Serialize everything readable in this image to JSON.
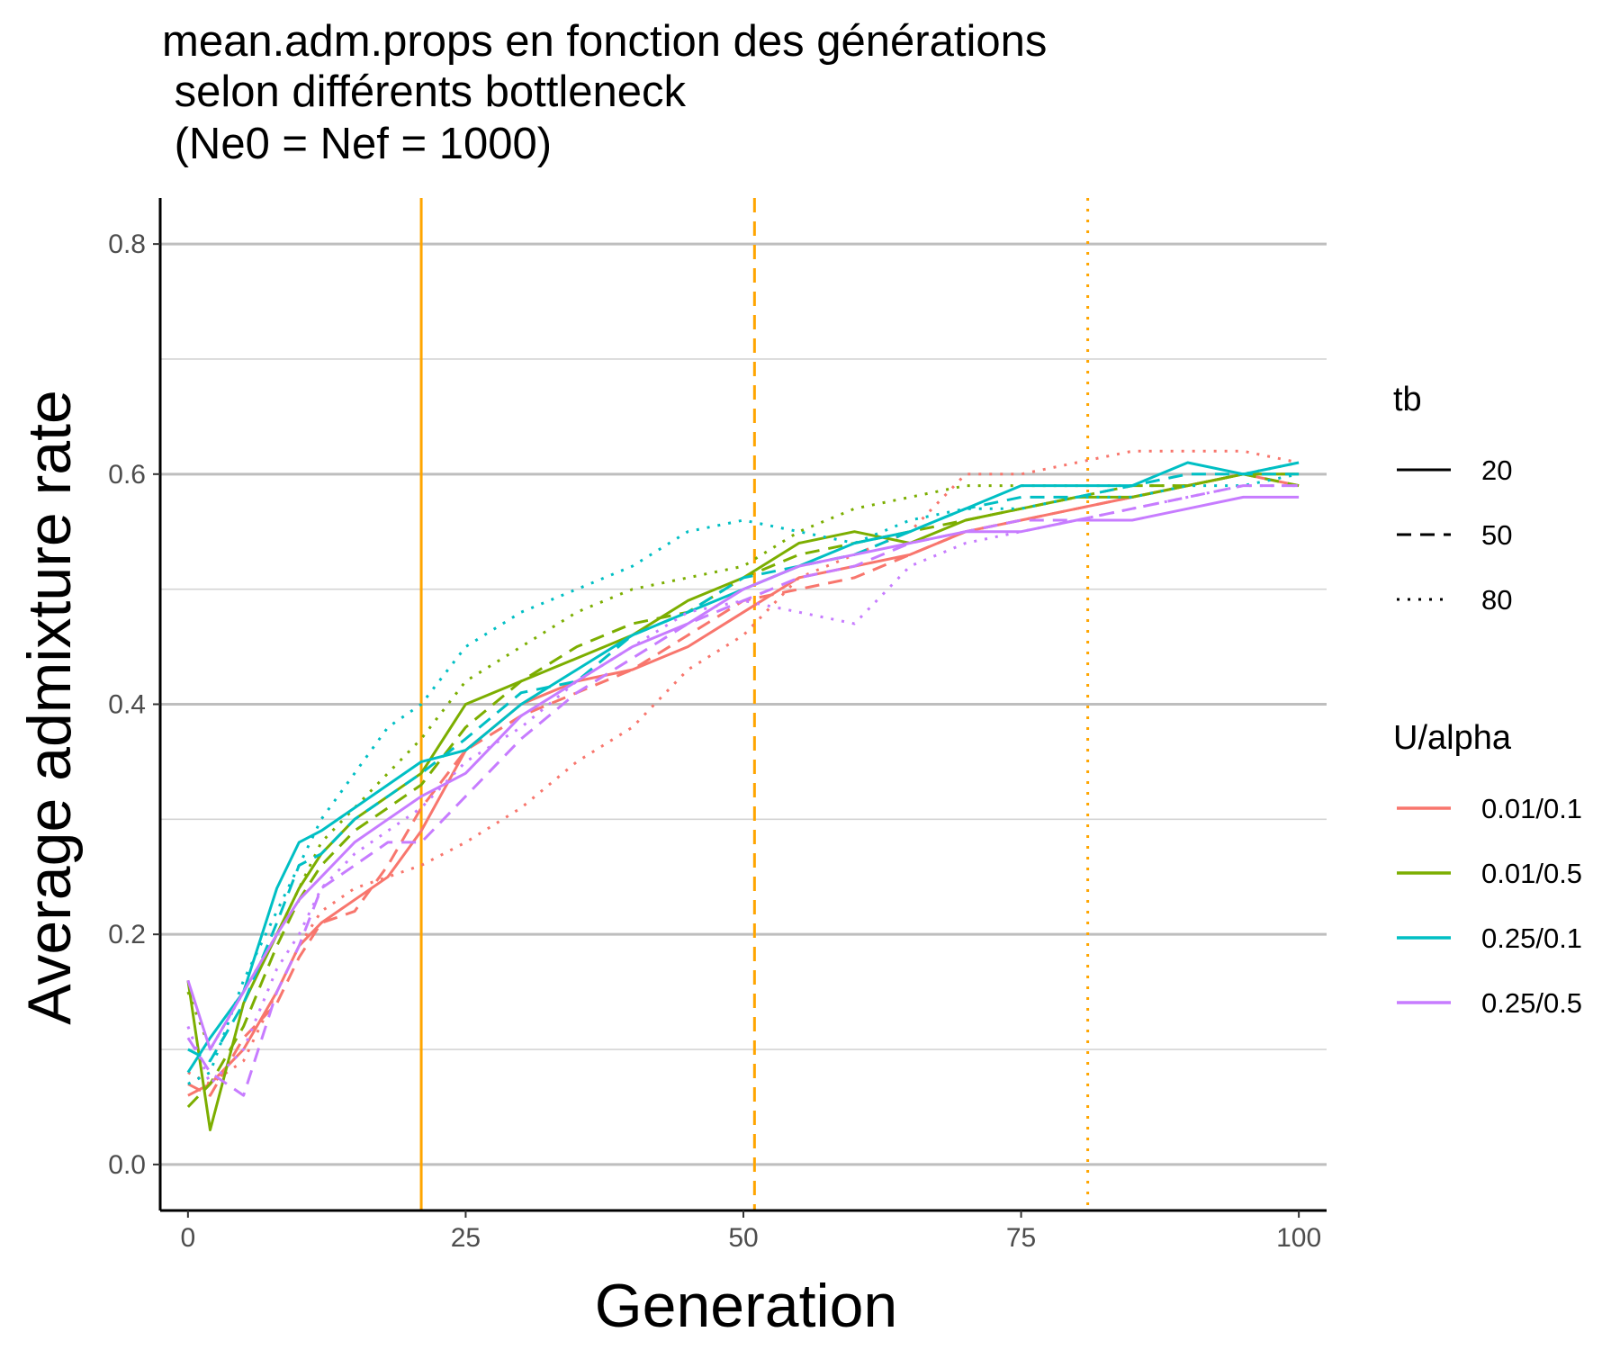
{
  "chart_data": {
    "type": "line",
    "title": [
      "mean.adm.props en fonction des générations",
      " selon différents bottleneck",
      " (Ne0 = Nef = 1000)"
    ],
    "xlabel": "Generation",
    "ylabel": "Average admixture rate",
    "xlim": [
      -2.5,
      102.5
    ],
    "ylim": [
      -0.04,
      0.84
    ],
    "x_ticks": [
      0,
      25,
      50,
      75,
      100
    ],
    "y_ticks": [
      0.0,
      0.2,
      0.4,
      0.6,
      0.8
    ],
    "x_tick_labels": [
      "0",
      "25",
      "50",
      "75",
      "100"
    ],
    "y_tick_labels": [
      "0.0",
      "0.2",
      "0.4",
      "0.6",
      "0.8"
    ],
    "grid": "horizontal",
    "legend_position": "right",
    "legends": {
      "linetype": {
        "title": "tb",
        "entries": [
          {
            "label": "20",
            "dash": "solid"
          },
          {
            "label": "50",
            "dash": "dashed"
          },
          {
            "label": "80",
            "dash": "dotted"
          }
        ]
      },
      "color": {
        "title": "U/alpha",
        "entries": [
          {
            "label": "0.01/0.1",
            "color": "#F8766D"
          },
          {
            "label": "0.01/0.5",
            "color": "#7CAE00"
          },
          {
            "label": "0.25/0.1",
            "color": "#00BFC4"
          },
          {
            "label": "0.25/0.5",
            "color": "#C77CFF"
          }
        ]
      }
    },
    "vlines": [
      {
        "x": 21,
        "dash": "solid",
        "color": "#FFA500"
      },
      {
        "x": 51,
        "dash": "dashed",
        "color": "#FFA500"
      },
      {
        "x": 81,
        "dash": "dotted",
        "color": "#FFA500"
      }
    ],
    "series": [
      {
        "color_group": "0.01/0.1",
        "tb": "20",
        "color": "#F8766D",
        "dash": "solid",
        "x": [
          0,
          2,
          5,
          8,
          10,
          12,
          15,
          18,
          21,
          25,
          30,
          35,
          40,
          45,
          50,
          55,
          60,
          65,
          70,
          75,
          80,
          85,
          90,
          95,
          100
        ],
        "y": [
          0.06,
          0.07,
          0.1,
          0.15,
          0.19,
          0.21,
          0.23,
          0.25,
          0.29,
          0.36,
          0.4,
          0.42,
          0.43,
          0.45,
          0.48,
          0.51,
          0.52,
          0.53,
          0.55,
          0.56,
          0.57,
          0.58,
          0.59,
          0.6,
          0.59
        ]
      },
      {
        "color_group": "0.01/0.1",
        "tb": "50",
        "color": "#F8766D",
        "dash": "dashed",
        "x": [
          0,
          2,
          5,
          8,
          10,
          12,
          15,
          18,
          21,
          25,
          30,
          35,
          40,
          45,
          50,
          55,
          60,
          65,
          70,
          75,
          80,
          85,
          90,
          95,
          100
        ],
        "y": [
          0.07,
          0.06,
          0.11,
          0.14,
          0.18,
          0.21,
          0.22,
          0.26,
          0.31,
          0.36,
          0.39,
          0.41,
          0.43,
          0.46,
          0.49,
          0.5,
          0.51,
          0.53,
          0.55,
          0.56,
          0.57,
          0.58,
          0.59,
          0.6,
          0.6
        ]
      },
      {
        "color_group": "0.01/0.1",
        "tb": "80",
        "color": "#F8766D",
        "dash": "dotted",
        "x": [
          0,
          2,
          5,
          8,
          10,
          12,
          15,
          18,
          21,
          25,
          30,
          35,
          40,
          45,
          50,
          55,
          60,
          65,
          70,
          75,
          80,
          85,
          90,
          95,
          100
        ],
        "y": [
          0.08,
          0.07,
          0.09,
          0.15,
          0.19,
          0.22,
          0.24,
          0.25,
          0.26,
          0.28,
          0.31,
          0.35,
          0.38,
          0.43,
          0.46,
          0.51,
          0.53,
          0.55,
          0.6,
          0.6,
          0.61,
          0.62,
          0.62,
          0.62,
          0.61
        ]
      },
      {
        "color_group": "0.01/0.5",
        "tb": "20",
        "color": "#7CAE00",
        "dash": "solid",
        "x": [
          0,
          2,
          5,
          8,
          10,
          12,
          15,
          18,
          21,
          25,
          30,
          35,
          40,
          45,
          50,
          55,
          60,
          65,
          70,
          75,
          80,
          85,
          90,
          95,
          100
        ],
        "y": [
          0.16,
          0.03,
          0.14,
          0.2,
          0.24,
          0.27,
          0.3,
          0.32,
          0.34,
          0.4,
          0.42,
          0.44,
          0.46,
          0.49,
          0.51,
          0.54,
          0.55,
          0.54,
          0.56,
          0.57,
          0.58,
          0.58,
          0.59,
          0.6,
          0.6
        ]
      },
      {
        "color_group": "0.01/0.5",
        "tb": "50",
        "color": "#7CAE00",
        "dash": "dashed",
        "x": [
          0,
          2,
          5,
          8,
          10,
          12,
          15,
          18,
          21,
          25,
          30,
          35,
          40,
          45,
          50,
          55,
          60,
          65,
          70,
          75,
          80,
          85,
          90,
          95,
          100
        ],
        "y": [
          0.05,
          0.07,
          0.12,
          0.19,
          0.23,
          0.26,
          0.29,
          0.31,
          0.33,
          0.38,
          0.42,
          0.45,
          0.47,
          0.48,
          0.51,
          0.53,
          0.54,
          0.55,
          0.56,
          0.57,
          0.58,
          0.59,
          0.59,
          0.6,
          0.59
        ]
      },
      {
        "color_group": "0.01/0.5",
        "tb": "80",
        "color": "#7CAE00",
        "dash": "dotted",
        "x": [
          0,
          2,
          5,
          8,
          10,
          12,
          15,
          18,
          21,
          25,
          30,
          35,
          40,
          45,
          50,
          55,
          60,
          65,
          70,
          75,
          80,
          85,
          90,
          95,
          100
        ],
        "y": [
          0.15,
          0.1,
          0.15,
          0.2,
          0.24,
          0.28,
          0.31,
          0.34,
          0.37,
          0.42,
          0.45,
          0.48,
          0.5,
          0.51,
          0.52,
          0.55,
          0.57,
          0.58,
          0.59,
          0.59,
          0.59,
          0.59,
          0.59,
          0.6,
          0.61
        ]
      },
      {
        "color_group": "0.25/0.1",
        "tb": "20",
        "color": "#00BFC4",
        "dash": "solid",
        "x": [
          0,
          2,
          5,
          8,
          10,
          12,
          15,
          18,
          21,
          25,
          30,
          35,
          40,
          45,
          50,
          55,
          60,
          65,
          70,
          75,
          80,
          85,
          90,
          95,
          100
        ],
        "y": [
          0.08,
          0.11,
          0.15,
          0.24,
          0.28,
          0.29,
          0.31,
          0.33,
          0.35,
          0.36,
          0.4,
          0.43,
          0.46,
          0.48,
          0.5,
          0.52,
          0.54,
          0.55,
          0.57,
          0.59,
          0.59,
          0.59,
          0.61,
          0.6,
          0.61
        ]
      },
      {
        "color_group": "0.25/0.1",
        "tb": "50",
        "color": "#00BFC4",
        "dash": "dashed",
        "x": [
          0,
          2,
          5,
          8,
          10,
          12,
          15,
          18,
          21,
          25,
          30,
          35,
          40,
          45,
          50,
          55,
          60,
          65,
          70,
          75,
          80,
          85,
          90,
          95,
          100
        ],
        "y": [
          0.1,
          0.09,
          0.14,
          0.21,
          0.26,
          0.27,
          0.3,
          0.32,
          0.34,
          0.37,
          0.41,
          0.42,
          0.46,
          0.48,
          0.51,
          0.52,
          0.53,
          0.55,
          0.57,
          0.58,
          0.58,
          0.59,
          0.6,
          0.6,
          0.6
        ]
      },
      {
        "color_group": "0.25/0.1",
        "tb": "80",
        "color": "#00BFC4",
        "dash": "dotted",
        "x": [
          0,
          2,
          5,
          8,
          10,
          12,
          15,
          18,
          21,
          25,
          30,
          35,
          40,
          45,
          50,
          55,
          60,
          65,
          70,
          75,
          80,
          85,
          90,
          95,
          100
        ],
        "y": [
          0.07,
          0.08,
          0.16,
          0.22,
          0.26,
          0.3,
          0.34,
          0.38,
          0.4,
          0.45,
          0.48,
          0.5,
          0.52,
          0.55,
          0.56,
          0.55,
          0.54,
          0.56,
          0.57,
          0.57,
          0.58,
          0.58,
          0.59,
          0.59,
          0.6
        ]
      },
      {
        "color_group": "0.25/0.5",
        "tb": "20",
        "color": "#C77CFF",
        "dash": "solid",
        "x": [
          0,
          2,
          5,
          8,
          10,
          12,
          15,
          18,
          21,
          25,
          30,
          35,
          40,
          45,
          50,
          55,
          60,
          65,
          70,
          75,
          80,
          85,
          90,
          95,
          100
        ],
        "y": [
          0.16,
          0.1,
          0.15,
          0.2,
          0.23,
          0.25,
          0.28,
          0.3,
          0.32,
          0.34,
          0.39,
          0.42,
          0.45,
          0.47,
          0.5,
          0.52,
          0.53,
          0.54,
          0.55,
          0.55,
          0.56,
          0.56,
          0.57,
          0.58,
          0.58
        ]
      },
      {
        "color_group": "0.25/0.5",
        "tb": "50",
        "color": "#C77CFF",
        "dash": "dashed",
        "x": [
          0,
          2,
          5,
          8,
          10,
          12,
          15,
          18,
          21,
          25,
          30,
          35,
          40,
          45,
          50,
          55,
          60,
          65,
          70,
          75,
          80,
          85,
          90,
          95,
          100
        ],
        "y": [
          0.11,
          0.08,
          0.06,
          0.15,
          0.19,
          0.24,
          0.26,
          0.28,
          0.28,
          0.32,
          0.37,
          0.41,
          0.44,
          0.47,
          0.49,
          0.51,
          0.52,
          0.54,
          0.55,
          0.56,
          0.56,
          0.57,
          0.58,
          0.59,
          0.59
        ]
      },
      {
        "color_group": "0.25/0.5",
        "tb": "80",
        "color": "#C77CFF",
        "dash": "dotted",
        "x": [
          0,
          2,
          5,
          8,
          10,
          12,
          15,
          18,
          21,
          25,
          30,
          35,
          40,
          45,
          50,
          55,
          60,
          65,
          70,
          75,
          80,
          85,
          90,
          95,
          100
        ],
        "y": [
          0.12,
          0.07,
          0.1,
          0.17,
          0.2,
          0.24,
          0.27,
          0.29,
          0.31,
          0.35,
          0.38,
          0.42,
          0.45,
          0.48,
          0.49,
          0.48,
          0.47,
          0.52,
          0.54,
          0.55,
          0.56,
          0.57,
          0.58,
          0.59,
          0.59
        ]
      }
    ]
  }
}
